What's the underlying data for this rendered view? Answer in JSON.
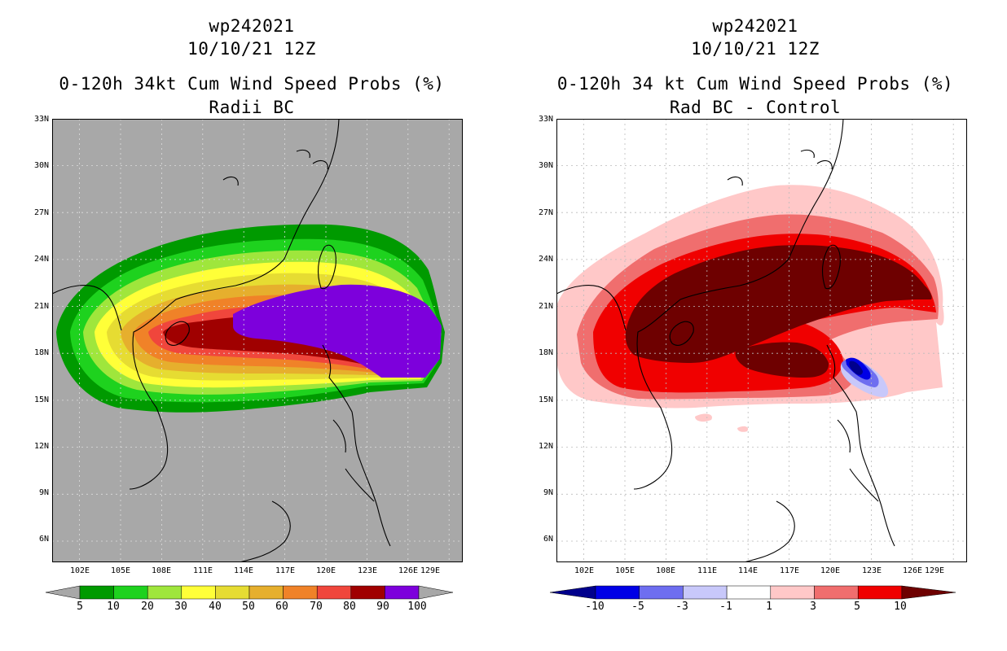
{
  "chart_data": [
    {
      "type": "heatmap",
      "storm_id": "wp242021",
      "datetime": "10/10/21 12Z",
      "title": "0-120h 34kt Cum Wind Speed Probs (%)",
      "subtitle": "Radii BC",
      "lon_range": [
        100,
        130
      ],
      "lat_range": [
        4.5,
        33
      ],
      "y_ticks": [
        "33N",
        "30N",
        "27N",
        "24N",
        "21N",
        "18N",
        "15N",
        "12N",
        "9N",
        "6N"
      ],
      "x_ticks": [
        "102E",
        "105E",
        "108E",
        "111E",
        "114E",
        "117E",
        "120E",
        "123E",
        "126E",
        "129E"
      ],
      "background": "#a8a8a8",
      "colorbar": {
        "levels": [
          "5",
          "10",
          "20",
          "30",
          "40",
          "50",
          "60",
          "70",
          "80",
          "90",
          "100"
        ],
        "colors": [
          "#009a00",
          "#1ed21e",
          "#9fe63c",
          "#ffff38",
          "#e6dc32",
          "#e6af2d",
          "#f08228",
          "#f0463c",
          "#a00000",
          "#7d00dc"
        ]
      }
    },
    {
      "type": "heatmap",
      "storm_id": "wp242021",
      "datetime": "10/10/21 12Z",
      "title": "0-120h 34 kt Cum Wind Speed Probs (%)",
      "subtitle": "Rad BC - Control",
      "lon_range": [
        100,
        130
      ],
      "lat_range": [
        4.5,
        33
      ],
      "y_ticks": [
        "33N",
        "30N",
        "27N",
        "24N",
        "21N",
        "18N",
        "15N",
        "12N",
        "9N",
        "6N"
      ],
      "x_ticks": [
        "102E",
        "105E",
        "108E",
        "111E",
        "114E",
        "117E",
        "120E",
        "123E",
        "126E",
        "129E"
      ],
      "background": "#ffffff",
      "colorbar": {
        "levels": [
          "-10",
          "-5",
          "-3",
          "-1",
          "1",
          "3",
          "5",
          "10"
        ],
        "colors": [
          "#00008c",
          "#0000e6",
          "#6e6ef0",
          "#c8c8fa",
          "#ffffff",
          "#ffc8c8",
          "#f06e6e",
          "#f00000",
          "#6e0000"
        ]
      }
    }
  ]
}
